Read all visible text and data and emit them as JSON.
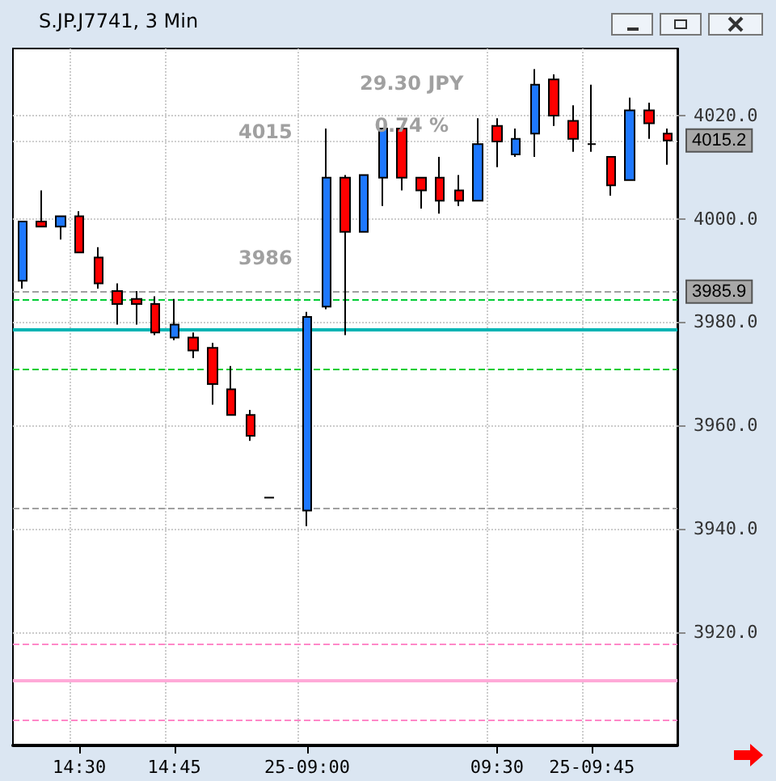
{
  "chart_data": {
    "type": "candlestick",
    "title": "S.JP.J7741, 3 Min",
    "categories": [
      null,
      null,
      null,
      "14:30",
      null,
      null,
      null,
      null,
      "14:45",
      null,
      null,
      null,
      null,
      null,
      null,
      "25-09:00",
      null,
      null,
      null,
      null,
      null,
      null,
      null,
      null,
      null,
      "09:30",
      null,
      null,
      null,
      null,
      "25-09:45",
      null,
      null,
      null,
      null
    ],
    "ohlc": [
      [
        3988,
        3999.5,
        3986.5,
        3999.5
      ],
      [
        3999.5,
        4005.5,
        3998.5,
        3998.5
      ],
      [
        3998.5,
        4000.5,
        3996,
        4000.5
      ],
      [
        4000.5,
        4001.5,
        3993.5,
        3993.5
      ],
      [
        3992.5,
        3994.5,
        3986.5,
        3987.5
      ],
      [
        3986,
        3987.5,
        3979.5,
        3983.5
      ],
      [
        3984.5,
        3986,
        3979.5,
        3983.5
      ],
      [
        3983.5,
        3985,
        3977.5,
        3978
      ],
      [
        3977,
        3984.5,
        3976.5,
        3979.5
      ],
      [
        3977,
        3978,
        3973,
        3974.5
      ],
      [
        3975,
        3976,
        3964,
        3968
      ],
      [
        3967,
        3971.5,
        3962,
        3962
      ],
      [
        3962,
        3963,
        3957,
        3958
      ],
      [
        3946,
        3946,
        3946,
        3946
      ],
      null,
      [
        3943.5,
        3982,
        3940.5,
        3981
      ],
      [
        3983,
        4017.5,
        3982.5,
        4008
      ],
      [
        4008,
        4008.5,
        3977.5,
        3997.5
      ],
      [
        3997.5,
        4008.5,
        3997.5,
        4008.5
      ],
      [
        4008,
        4017.5,
        4002.5,
        4017.5
      ],
      [
        4017.5,
        4017.5,
        4005.5,
        4008
      ],
      [
        4008,
        4008,
        4002,
        4005.5
      ],
      [
        4008,
        4012,
        4001,
        4003.5
      ],
      [
        4005.5,
        4008.5,
        4002.5,
        4003.5
      ],
      [
        4003.5,
        4019.5,
        4003.5,
        4014.5
      ],
      [
        4018,
        4019.5,
        4010,
        4015
      ],
      [
        4012.5,
        4017.5,
        4012,
        4015.5
      ],
      [
        4016.5,
        4029,
        4012,
        4026
      ],
      [
        4027,
        4028,
        4018,
        4020
      ],
      [
        4019,
        4022,
        4013,
        4015.5
      ],
      [
        4014.5,
        4026,
        4013,
        4014.5
      ],
      [
        4012,
        4012,
        4004.5,
        4006.5
      ],
      [
        4007.5,
        4023.5,
        4007.5,
        4021
      ],
      [
        4021,
        4022.5,
        4015.5,
        4018.5
      ],
      [
        4016.5,
        4017.5,
        4010.5,
        4015.2
      ]
    ],
    "colors": [
      "#1e78ff",
      "#ff0000",
      "#1e78ff",
      "#ff0000",
      "#ff0000",
      "#ff0000",
      "#ff0000",
      "#ff0000",
      "#1e78ff",
      "#ff0000",
      "#ff0000",
      "#ff0000",
      "#ff0000",
      "#000000",
      null,
      "#1e78ff",
      "#1e78ff",
      "#ff0000",
      "#1e78ff",
      "#1e78ff",
      "#ff0000",
      "#ff0000",
      "#ff0000",
      "#ff0000",
      "#1e78ff",
      "#ff0000",
      "#1e78ff",
      "#1e78ff",
      "#ff0000",
      "#ff0000",
      "#000000",
      "#ff0000",
      "#1e78ff",
      "#ff0000",
      "#ff0000"
    ],
    "ylim": [
      3898,
      4033
    ],
    "yticks": [
      {
        "value": 3920,
        "label": "3920.0"
      },
      {
        "value": 3940,
        "label": "3940.0"
      },
      {
        "value": 3960,
        "label": "3960.0"
      },
      {
        "value": 3980,
        "label": "3980.0"
      },
      {
        "value": 4000,
        "label": "4000.0"
      },
      {
        "value": 4020,
        "label": "4020.0"
      }
    ],
    "grid": true,
    "ref_lines": [
      {
        "axis": "y",
        "value": 3985.9,
        "label": "3985.9",
        "color": "#a0a0a0",
        "line_style": "dashed"
      },
      {
        "axis": "y",
        "value": 4015.2,
        "label": "4015.2",
        "color": "#d0d0d0",
        "line_style": "dotted"
      },
      {
        "axis": "y",
        "value": 3984.5,
        "color": "#00cc33",
        "line_style": "dashed"
      },
      {
        "axis": "y",
        "value": 3971,
        "color": "#00cc33",
        "line_style": "dashed"
      },
      {
        "axis": "y",
        "value": 3978.5,
        "color": "#00b4b4",
        "line_style": "solid"
      },
      {
        "axis": "y",
        "value": 3944,
        "color": "#a0a0a0",
        "line_style": "dashed"
      },
      {
        "axis": "y",
        "value": 3917.5,
        "color": "#ff88c8",
        "line_style": "dashed"
      },
      {
        "axis": "y",
        "value": 3910.5,
        "color": "#ffaad8",
        "line_style": "solid"
      },
      {
        "axis": "y",
        "value": 3903,
        "color": "#ff88c8",
        "line_style": "dashed"
      }
    ],
    "annotations": [
      "4015",
      "29.30 JPY",
      "0.74 %",
      "3986"
    ]
  }
}
